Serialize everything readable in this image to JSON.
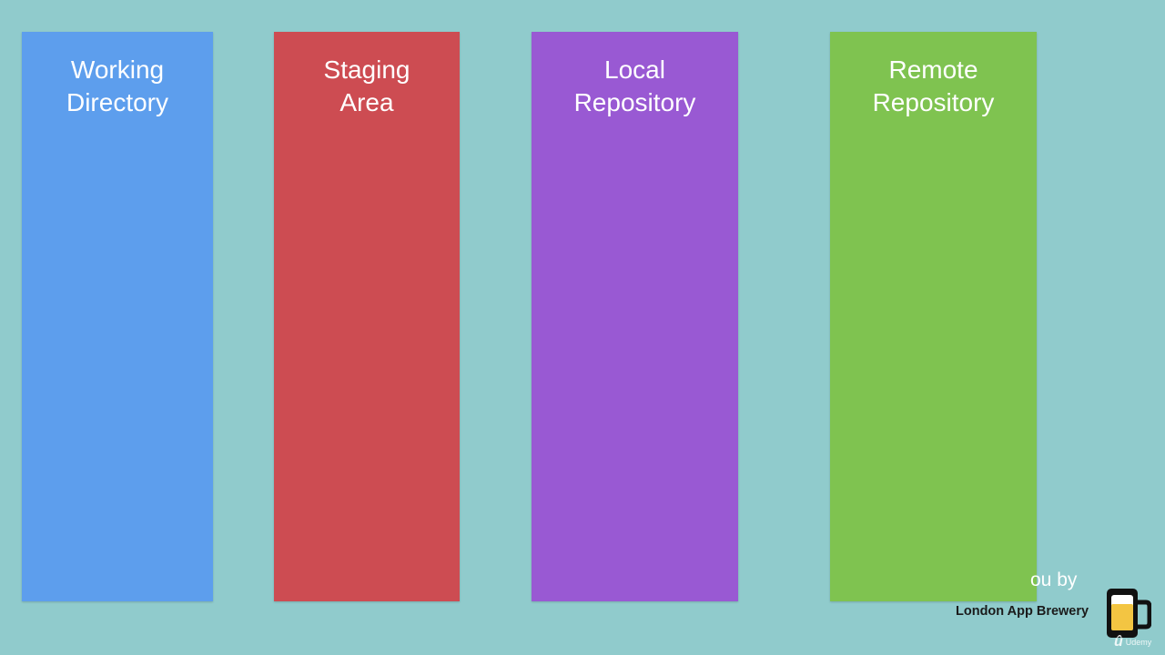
{
  "diagram": {
    "columns": [
      {
        "id": "working",
        "title": "Working\nDirectory",
        "color": "#5d9eed"
      },
      {
        "id": "staging",
        "title": "Staging\nArea",
        "color": "#cd4c52"
      },
      {
        "id": "local",
        "title": "Local\nRepository",
        "color": "#9959d3"
      },
      {
        "id": "remote",
        "title": "Remote\nRepository",
        "color": "#7fc350"
      }
    ]
  },
  "watermark": {
    "by_text": "ou by",
    "brand": "London App Brewery",
    "brand_icon": "beer-mug-icon",
    "platform_text": "Udemy",
    "platform_icon": "udemy-icon"
  },
  "colors": {
    "background": "#90cbcc",
    "title_text": "#ffffff",
    "brand_text": "#1b1b1b"
  }
}
